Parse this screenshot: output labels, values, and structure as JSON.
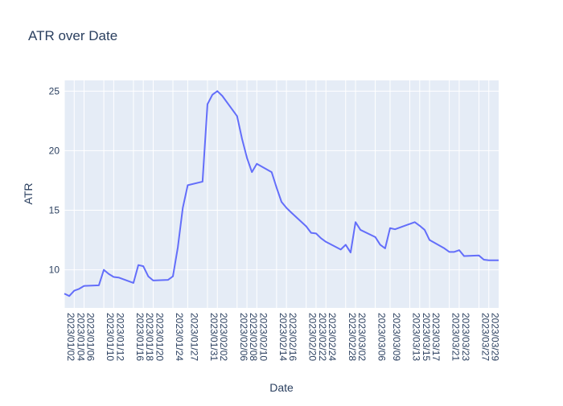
{
  "chart_data": {
    "type": "line",
    "title": "ATR over Date",
    "xlabel": "Date",
    "ylabel": "ATR",
    "xlim": [
      "2023-01-02",
      "2023-03-31"
    ],
    "ylim": [
      6.8,
      25.9
    ],
    "grid": true,
    "legend": "none",
    "y_ticks": [
      10,
      15,
      20,
      25
    ],
    "x_tick_labels": [
      "2023/01/02",
      "2023/01/04",
      "2023/01/06",
      "2023/01/10",
      "2023/01/12",
      "2023/01/16",
      "2023/01/18",
      "2023/01/20",
      "2023/01/24",
      "2023/01/27",
      "2023/01/31",
      "2023/02/02",
      "2023/02/06",
      "2023/02/08",
      "2023/02/10",
      "2023/02/14",
      "2023/02/16",
      "2023/02/20",
      "2023/02/22",
      "2023/02/24",
      "2023/02/28",
      "2023/03/02",
      "2023/03/06",
      "2023/03/09",
      "2023/03/13",
      "2023/03/15",
      "2023/03/17",
      "2023/03/21",
      "2023/03/23",
      "2023/03/27",
      "2023/03/29"
    ],
    "series": [
      {
        "color": "#636efa",
        "x": [
          "2023-01-02",
          "2023-01-03",
          "2023-01-04",
          "2023-01-05",
          "2023-01-06",
          "2023-01-09",
          "2023-01-10",
          "2023-01-11",
          "2023-01-12",
          "2023-01-13",
          "2023-01-16",
          "2023-01-17",
          "2023-01-18",
          "2023-01-19",
          "2023-01-20",
          "2023-01-23",
          "2023-01-24",
          "2023-01-25",
          "2023-01-26",
          "2023-01-27",
          "2023-01-30",
          "2023-01-31",
          "2023-02-01",
          "2023-02-02",
          "2023-02-03",
          "2023-02-06",
          "2023-02-07",
          "2023-02-08",
          "2023-02-09",
          "2023-02-10",
          "2023-02-13",
          "2023-02-14",
          "2023-02-15",
          "2023-02-16",
          "2023-02-17",
          "2023-02-20",
          "2023-02-21",
          "2023-02-22",
          "2023-02-23",
          "2023-02-24",
          "2023-02-27",
          "2023-02-28",
          "2023-03-01",
          "2023-03-02",
          "2023-03-03",
          "2023-03-06",
          "2023-03-07",
          "2023-03-08",
          "2023-03-09",
          "2023-03-10",
          "2023-03-13",
          "2023-03-14",
          "2023-03-15",
          "2023-03-16",
          "2023-03-17",
          "2023-03-20",
          "2023-03-21",
          "2023-03-22",
          "2023-03-23",
          "2023-03-24",
          "2023-03-27",
          "2023-03-28",
          "2023-03-29",
          "2023-03-30",
          "2023-03-31"
        ],
        "y": [
          8.0,
          7.8,
          8.25,
          8.4,
          8.65,
          8.7,
          10.0,
          9.65,
          9.4,
          9.35,
          8.9,
          10.4,
          10.3,
          9.45,
          9.1,
          9.15,
          9.45,
          11.9,
          15.2,
          17.1,
          17.4,
          23.9,
          24.7,
          25.0,
          24.6,
          22.9,
          21.0,
          19.4,
          18.2,
          18.9,
          18.2,
          16.9,
          15.7,
          15.2,
          14.8,
          13.65,
          13.1,
          13.05,
          12.65,
          12.35,
          11.7,
          12.1,
          11.45,
          14.0,
          13.35,
          12.75,
          12.1,
          11.8,
          13.5,
          13.4,
          13.85,
          14.0,
          13.7,
          13.35,
          12.5,
          11.8,
          11.5,
          11.5,
          11.65,
          11.15,
          11.2,
          10.85,
          10.8,
          10.8,
          10.8
        ]
      }
    ]
  }
}
